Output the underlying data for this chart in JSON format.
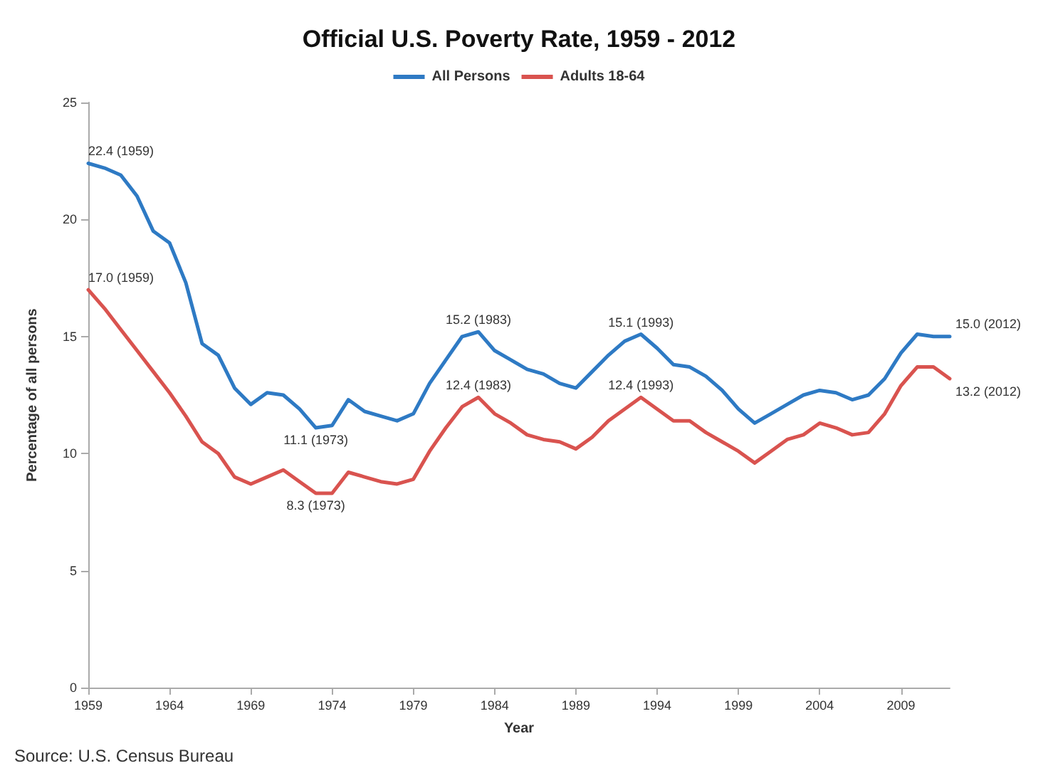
{
  "chart_data": {
    "type": "line",
    "title": "Official U.S. Poverty Rate, 1959 - 2012",
    "xlabel": "Year",
    "ylabel": "Percentage of all persons",
    "x": [
      1959,
      1960,
      1961,
      1962,
      1963,
      1964,
      1965,
      1966,
      1967,
      1968,
      1969,
      1970,
      1971,
      1972,
      1973,
      1974,
      1975,
      1976,
      1977,
      1978,
      1979,
      1980,
      1981,
      1982,
      1983,
      1984,
      1985,
      1986,
      1987,
      1988,
      1989,
      1990,
      1991,
      1992,
      1993,
      1994,
      1995,
      1996,
      1997,
      1998,
      1999,
      2000,
      2001,
      2002,
      2003,
      2004,
      2005,
      2006,
      2007,
      2008,
      2009,
      2010,
      2011,
      2012
    ],
    "series": [
      {
        "name": "All Persons",
        "color": "#2e7ac4",
        "values": [
          22.4,
          22.2,
          21.9,
          21.0,
          19.5,
          19.0,
          17.3,
          14.7,
          14.2,
          12.8,
          12.1,
          12.6,
          12.5,
          11.9,
          11.1,
          11.2,
          12.3,
          11.8,
          11.6,
          11.4,
          11.7,
          13.0,
          14.0,
          15.0,
          15.2,
          14.4,
          14.0,
          13.6,
          13.4,
          13.0,
          12.8,
          13.5,
          14.2,
          14.8,
          15.1,
          14.5,
          13.8,
          13.7,
          13.3,
          12.7,
          11.9,
          11.3,
          11.7,
          12.1,
          12.5,
          12.7,
          12.6,
          12.3,
          12.5,
          13.2,
          14.3,
          15.1,
          15.0,
          15.0
        ]
      },
      {
        "name": "Adults 18-64",
        "color": "#d9534f",
        "values": [
          17.0,
          16.2,
          15.3,
          14.4,
          13.5,
          12.6,
          11.6,
          10.5,
          10.0,
          9.0,
          8.7,
          9.0,
          9.3,
          8.8,
          8.3,
          8.3,
          9.2,
          9.0,
          8.8,
          8.7,
          8.9,
          10.1,
          11.1,
          12.0,
          12.4,
          11.7,
          11.3,
          10.8,
          10.6,
          10.5,
          10.2,
          10.7,
          11.4,
          11.9,
          12.4,
          11.9,
          11.4,
          11.4,
          10.9,
          10.5,
          10.1,
          9.6,
          10.1,
          10.6,
          10.8,
          11.3,
          11.1,
          10.8,
          10.9,
          11.7,
          12.9,
          13.7,
          13.7,
          13.2
        ]
      }
    ],
    "xlim": [
      1959,
      2012
    ],
    "xticks": [
      1959,
      1964,
      1969,
      1974,
      1979,
      1984,
      1989,
      1994,
      1999,
      2004,
      2009
    ],
    "ylim": [
      0,
      25
    ],
    "yticks": [
      0,
      5,
      10,
      15,
      20,
      25
    ],
    "grid": false,
    "legend": "top",
    "marker": "none",
    "line_style": "solid",
    "annotations": [
      {
        "text": "22.4 (1959)",
        "x": 1959,
        "y": 22.4
      },
      {
        "text": "17.0 (1959)",
        "x": 1959,
        "y": 17.0
      },
      {
        "text": "11.1 (1973)",
        "x": 1973,
        "y": 11.1
      },
      {
        "text": "8.3 (1973)",
        "x": 1973,
        "y": 8.3
      },
      {
        "text": "15.2 (1983)",
        "x": 1983,
        "y": 15.2
      },
      {
        "text": "12.4 (1983)",
        "x": 1983,
        "y": 12.4
      },
      {
        "text": "15.1 (1993)",
        "x": 1993,
        "y": 15.1
      },
      {
        "text": "12.4 (1993)",
        "x": 1993,
        "y": 12.4
      },
      {
        "text": "15.0 (2012)",
        "x": 2012,
        "y": 15.0
      },
      {
        "text": "13.2 (2012)",
        "x": 2012,
        "y": 13.2
      },
      "Source: U.S. Census Bureau"
    ]
  }
}
